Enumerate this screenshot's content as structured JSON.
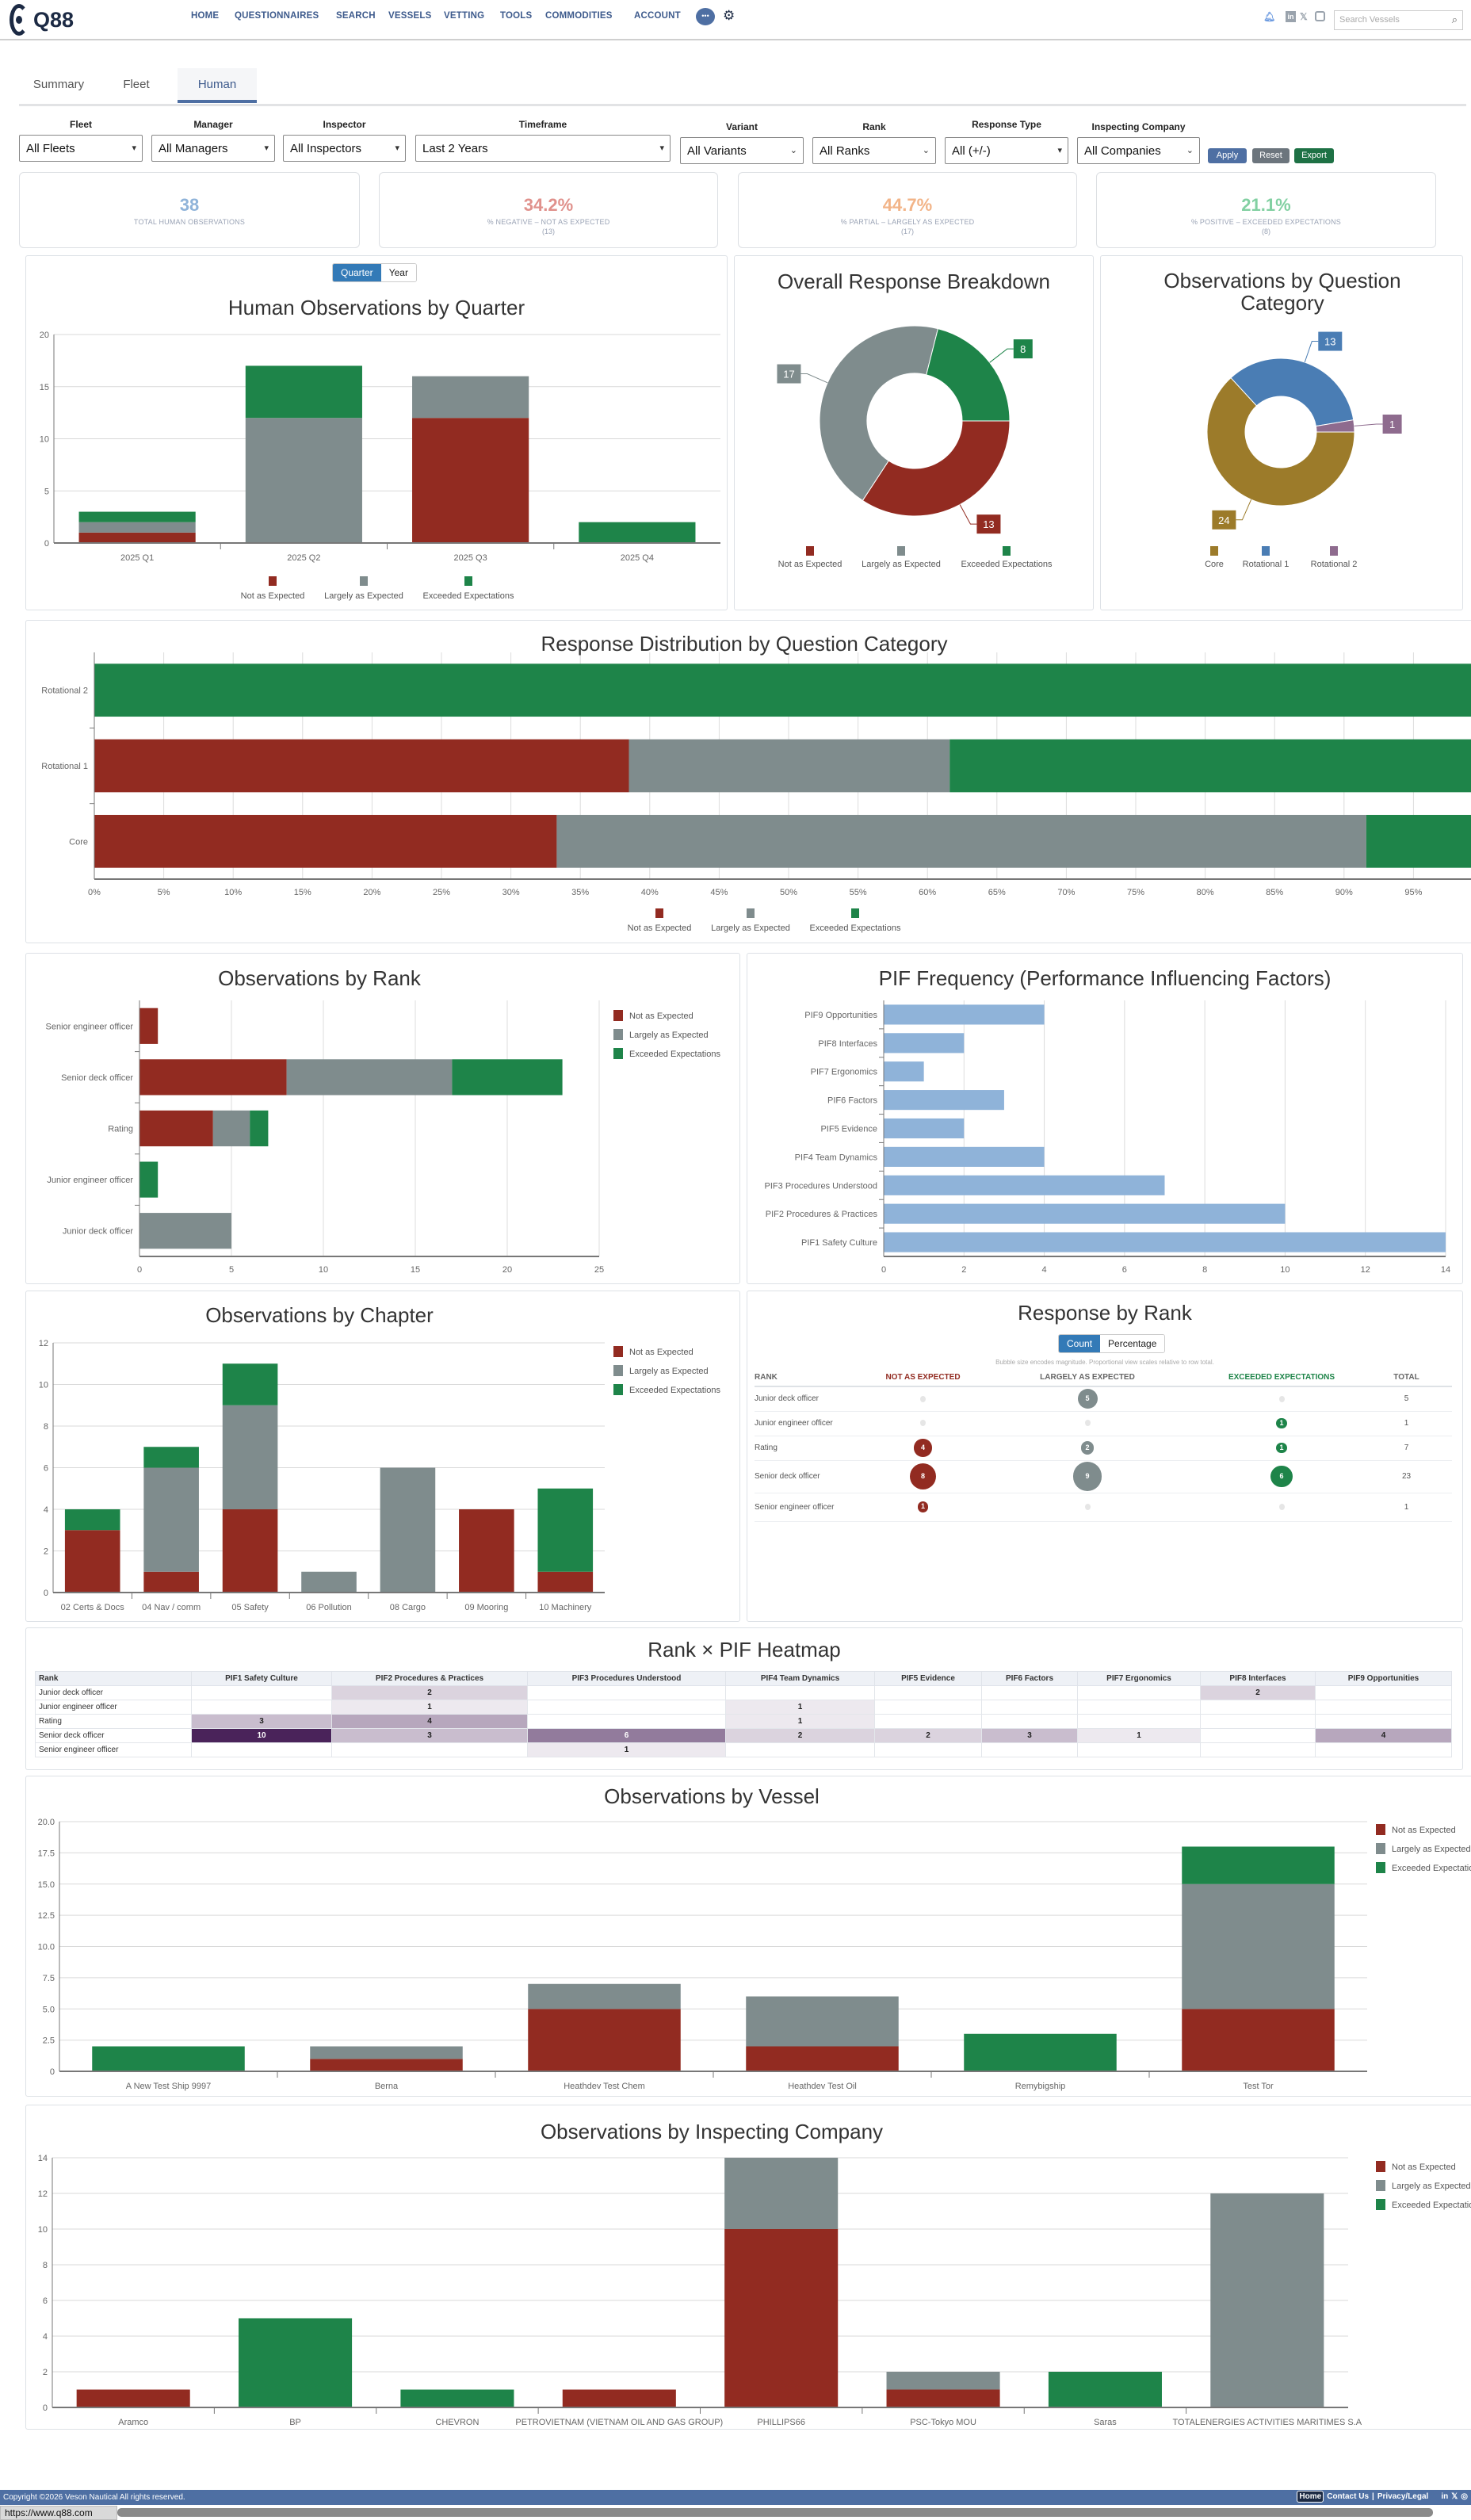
{
  "header": {
    "logo": "Q88",
    "nav": [
      "HOME",
      "QUESTIONNAIRES",
      "SEARCH",
      "VESSELS",
      "VETTING",
      "TOOLS",
      "COMMODITIES",
      "ACCOUNT"
    ],
    "search_placeholder": "Search Vessels"
  },
  "tabs": [
    {
      "label": "Summary"
    },
    {
      "label": "Fleet"
    },
    {
      "label": "Human",
      "active": true
    }
  ],
  "filters": [
    {
      "label": "Fleet",
      "value": "All Fleets"
    },
    {
      "label": "Manager",
      "value": "All Managers"
    },
    {
      "label": "Inspector",
      "value": "All Inspectors"
    },
    {
      "label": "Timeframe",
      "value": "Last 2 Years"
    },
    {
      "label": "Variant",
      "value": "All Variants"
    },
    {
      "label": "Rank",
      "value": "All Ranks"
    },
    {
      "label": "Response Type",
      "value": "All (+/-)"
    },
    {
      "label": "Inspecting Company",
      "value": "All Companies"
    }
  ],
  "buttons": {
    "apply": "Apply",
    "reset": "Reset",
    "export": "Export"
  },
  "kpis": [
    {
      "value": "38",
      "label": "TOTAL HUMAN OBSERVATIONS",
      "count": "",
      "color": "#8fb3d9"
    },
    {
      "value": "34.2%",
      "label": "% NEGATIVE – NOT AS EXPECTED",
      "count": "(13)",
      "color": "#e0918c"
    },
    {
      "value": "44.7%",
      "label": "% PARTIAL – LARGELY AS EXPECTED",
      "count": "(17)",
      "color": "#f2b488"
    },
    {
      "value": "21.1%",
      "label": "% POSITIVE – EXCEEDED EXPECTATIONS",
      "count": "(8)",
      "color": "#82d0a2"
    }
  ],
  "colors": {
    "not_as_expected": "#922b21",
    "largely_as_expected": "#7f8c8d",
    "exceeded_expectations": "#1e8449",
    "core": "#9c7b2a",
    "rotational_1": "#4a7db4",
    "rotational_2": "#8e6b8e",
    "pif_bar": "#8fb3d9",
    "heat": "#4a235a",
    "accent": "#337ab7"
  },
  "chart_data": [
    {
      "type": "bar",
      "stacked": true,
      "title": "Human Observations by Quarter",
      "toggle": [
        "Quarter",
        "Year"
      ],
      "toggle_active": "Quarter",
      "categories": [
        "2025 Q1",
        "2025 Q2",
        "2025 Q3",
        "2025 Q4"
      ],
      "series": [
        {
          "name": "Not as Expected",
          "color": "#922b21",
          "values": [
            1,
            0,
            12,
            0
          ]
        },
        {
          "name": "Largely as Expected",
          "color": "#7f8c8d",
          "values": [
            1,
            12,
            4,
            0
          ]
        },
        {
          "name": "Exceeded Expectations",
          "color": "#1e8449",
          "values": [
            1,
            5,
            0,
            2
          ]
        }
      ],
      "ylim": [
        0,
        20
      ],
      "tick_labels": [
        "0",
        "5",
        "10",
        "15",
        "20"
      ],
      "grid": true,
      "legend": "bottom"
    },
    {
      "type": "pie",
      "donut": true,
      "title": "Overall Response Breakdown",
      "labels": [
        "Not as Expected",
        "Largely as Expected",
        "Exceeded Expectations"
      ],
      "values": [
        13,
        17,
        8
      ],
      "colors": [
        "#922b21",
        "#7f8c8d",
        "#1e8449"
      ],
      "legend": "bottom"
    },
    {
      "type": "pie",
      "donut": true,
      "title": "Observations by Question Category",
      "labels": [
        "Core",
        "Rotational 1",
        "Rotational 2"
      ],
      "values": [
        24,
        13,
        1
      ],
      "colors": [
        "#9c7b2a",
        "#4a7db4",
        "#8e6b8e"
      ],
      "legend": "bottom"
    },
    {
      "type": "bar",
      "orientation": "horizontal",
      "stacked": true,
      "percent": true,
      "title": "Response Distribution by Question Category",
      "categories": [
        "Rotational 2",
        "Rotational 1",
        "Core"
      ],
      "series": [
        {
          "name": "Not as Expected",
          "color": "#922b21",
          "values": [
            0,
            38.5,
            33.3
          ]
        },
        {
          "name": "Largely as Expected",
          "color": "#7f8c8d",
          "values": [
            0,
            23.1,
            58.3
          ]
        },
        {
          "name": "Exceeded Expectations",
          "color": "#1e8449",
          "values": [
            100,
            38.5,
            8.3
          ]
        }
      ],
      "xlim": [
        0,
        100
      ],
      "tick_labels": [
        "0%",
        "5%",
        "10%",
        "15%",
        "20%",
        "25%",
        "30%",
        "35%",
        "40%",
        "45%",
        "50%",
        "55%",
        "60%",
        "65%",
        "70%",
        "75%",
        "80%",
        "85%",
        "90%",
        "95%"
      ],
      "grid": true,
      "legend": "bottom"
    },
    {
      "type": "bar",
      "orientation": "horizontal",
      "stacked": true,
      "title": "Observations by Rank",
      "categories": [
        "Senior engineer officer",
        "Senior deck officer",
        "Rating",
        "Junior engineer officer",
        "Junior deck officer"
      ],
      "series": [
        {
          "name": "Not as Expected",
          "color": "#922b21",
          "values": [
            1,
            8,
            4,
            0,
            0
          ]
        },
        {
          "name": "Largely as Expected",
          "color": "#7f8c8d",
          "values": [
            0,
            9,
            2,
            0,
            5
          ]
        },
        {
          "name": "Exceeded Expectations",
          "color": "#1e8449",
          "values": [
            0,
            6,
            1,
            1,
            0
          ]
        }
      ],
      "xlim": [
        0,
        25
      ],
      "tick_labels": [
        "0",
        "5",
        "10",
        "15",
        "20",
        "25"
      ],
      "grid": true,
      "legend": "right"
    },
    {
      "type": "bar",
      "orientation": "horizontal",
      "title": "PIF Frequency (Performance Influencing Factors)",
      "categories": [
        "PIF9 Opportunities",
        "PIF8 Interfaces",
        "PIF7 Ergonomics",
        "PIF6 Factors",
        "PIF5 Evidence",
        "PIF4 Team Dynamics",
        "PIF3 Procedures Understood",
        "PIF2 Procedures & Practices",
        "PIF1 Safety Culture"
      ],
      "series": [
        {
          "color": "#8fb3d9",
          "values": [
            4,
            2,
            1,
            3,
            2,
            4,
            7,
            10,
            14
          ]
        }
      ],
      "xlim": [
        0,
        14
      ],
      "tick_labels": [
        "0",
        "2",
        "4",
        "6",
        "8",
        "10",
        "12",
        "14"
      ],
      "grid": true
    },
    {
      "type": "bar",
      "stacked": true,
      "title": "Observations by Chapter",
      "categories": [
        "02 Certs & Docs",
        "04 Nav / comm",
        "05 Safety",
        "06 Pollution",
        "08 Cargo",
        "09 Mooring",
        "10 Machinery"
      ],
      "series": [
        {
          "name": "Not as Expected",
          "color": "#922b21",
          "values": [
            3,
            1,
            4,
            0,
            0,
            4,
            1
          ]
        },
        {
          "name": "Largely as Expected",
          "color": "#7f8c8d",
          "values": [
            0,
            5,
            5,
            1,
            6,
            0,
            0
          ]
        },
        {
          "name": "Exceeded Expectations",
          "color": "#1e8449",
          "values": [
            1,
            1,
            2,
            0,
            0,
            0,
            4
          ]
        }
      ],
      "ylim": [
        0,
        12
      ],
      "tick_labels": [
        "0",
        "2",
        "4",
        "6",
        "8",
        "10",
        "12"
      ],
      "grid": true,
      "legend": "right"
    },
    {
      "type": "table",
      "title": "Response by Rank",
      "toggle": [
        "Count",
        "Percentage"
      ],
      "toggle_active": "Count",
      "note": "Bubble size encodes magnitude. Proportional view scales relative to row total.",
      "columns": [
        "RANK",
        "NOT AS EXPECTED",
        "LARGELY AS EXPECTED",
        "EXCEEDED EXPECTATIONS",
        "TOTAL"
      ],
      "rows": [
        [
          "Junior deck officer",
          0,
          5,
          0,
          5
        ],
        [
          "Junior engineer officer",
          0,
          0,
          1,
          1
        ],
        [
          "Rating",
          4,
          2,
          1,
          7
        ],
        [
          "Senior deck officer",
          8,
          9,
          6,
          23
        ],
        [
          "Senior engineer officer",
          1,
          0,
          0,
          1
        ]
      ]
    },
    {
      "type": "heatmap",
      "title": "Rank × PIF Heatmap",
      "columns": [
        "Rank",
        "PIF1 Safety Culture",
        "PIF2 Procedures & Practices",
        "PIF3 Procedures Understood",
        "PIF4 Team Dynamics",
        "PIF5 Evidence",
        "PIF6 Factors",
        "PIF7 Ergonomics",
        "PIF8 Interfaces",
        "PIF9 Opportunities"
      ],
      "rows": [
        [
          "Junior deck officer",
          null,
          2,
          null,
          null,
          null,
          null,
          null,
          2,
          null
        ],
        [
          "Junior engineer officer",
          null,
          1,
          null,
          1,
          null,
          null,
          null,
          null,
          null
        ],
        [
          "Rating",
          3,
          4,
          null,
          1,
          null,
          null,
          null,
          null,
          null
        ],
        [
          "Senior deck officer",
          10,
          3,
          6,
          2,
          2,
          3,
          1,
          null,
          4
        ],
        [
          "Senior engineer officer",
          null,
          null,
          1,
          null,
          null,
          null,
          null,
          null,
          null
        ]
      ],
      "max": 10
    },
    {
      "type": "bar",
      "stacked": true,
      "title": "Observations by Vessel",
      "categories": [
        "A New Test Ship 9997",
        "Berna",
        "Heathdev Test Chem",
        "Heathdev Test Oil",
        "Remybigship",
        "Test Tor"
      ],
      "series": [
        {
          "name": "Not as Expected",
          "color": "#922b21",
          "values": [
            0,
            1,
            5,
            2,
            0,
            5
          ]
        },
        {
          "name": "Largely as Expected",
          "color": "#7f8c8d",
          "values": [
            0,
            1,
            2,
            4,
            0,
            10
          ]
        },
        {
          "name": "Exceeded Expectations",
          "color": "#1e8449",
          "values": [
            2,
            0,
            0,
            0,
            3,
            3
          ]
        }
      ],
      "ylim": [
        0,
        20
      ],
      "tick_labels": [
        "0",
        "2.5",
        "5.0",
        "7.5",
        "10.0",
        "12.5",
        "15.0",
        "17.5",
        "20.0"
      ],
      "grid": true,
      "legend": "right"
    },
    {
      "type": "bar",
      "stacked": true,
      "title": "Observations by Inspecting Company",
      "categories": [
        "Aramco",
        "BP",
        "CHEVRON",
        "PETROVIETNAM (VIETNAM OIL AND GAS GROUP)",
        "PHILLIPS66",
        "PSC-Tokyo MOU",
        "Saras",
        "TOTALENERGIES ACTIVITIES MARITIMES S.A"
      ],
      "series": [
        {
          "name": "Not as Expected",
          "color": "#922b21",
          "values": [
            1,
            0,
            0,
            1,
            10,
            1,
            0,
            0
          ]
        },
        {
          "name": "Largely as Expected",
          "color": "#7f8c8d",
          "values": [
            0,
            0,
            0,
            0,
            4,
            1,
            0,
            12
          ]
        },
        {
          "name": "Exceeded Expectations",
          "color": "#1e8449",
          "values": [
            0,
            5,
            1,
            0,
            0,
            0,
            2,
            0
          ]
        }
      ],
      "ylim": [
        0,
        14
      ],
      "tick_labels": [
        "0",
        "2",
        "4",
        "6",
        "8",
        "10",
        "12",
        "14"
      ],
      "grid": true,
      "legend": "right"
    }
  ],
  "footer": {
    "copyright": "Copyright ©2026 Veson Nautical All rights reserved.",
    "links": [
      "Home",
      "Contact Us",
      "Privacy/Legal"
    ]
  },
  "status_url": "https://www.q88.com"
}
